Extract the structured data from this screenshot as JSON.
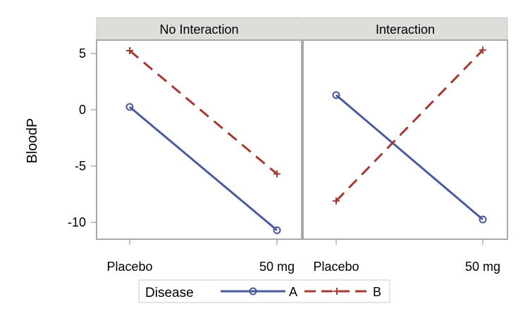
{
  "chart_data": [
    {
      "type": "line",
      "title": "No Interaction",
      "categories": [
        "Placebo",
        "50 mg"
      ],
      "series": [
        {
          "name": "A",
          "values": [
            0.25,
            -10.7
          ],
          "color": "#4a5a9c",
          "marker": "circle",
          "dash": "solid"
        },
        {
          "name": "B",
          "values": [
            5.25,
            -5.7
          ],
          "color": "#a53a32",
          "marker": "plus",
          "dash": "dashed"
        }
      ],
      "ylabel": "BloodP",
      "ylim": [
        -11.5,
        6.5
      ],
      "yticks": [
        "5",
        "0",
        "-5",
        "-10"
      ],
      "ytick_values": [
        5,
        0,
        -5,
        -10
      ]
    },
    {
      "type": "line",
      "title": "Interaction",
      "categories": [
        "Placebo",
        "50 mg"
      ],
      "series": [
        {
          "name": "A",
          "values": [
            1.3,
            -9.75
          ],
          "color": "#4a5a9c",
          "marker": "circle",
          "dash": "solid"
        },
        {
          "name": "B",
          "values": [
            -8.1,
            5.3
          ],
          "color": "#a53a32",
          "marker": "plus",
          "dash": "dashed"
        }
      ],
      "ylim": [
        -11.5,
        6.5
      ]
    }
  ],
  "legend": {
    "title": "Disease",
    "entries": [
      "A",
      "B"
    ],
    "placement": "bottom"
  },
  "header_bg": "#dcded9"
}
